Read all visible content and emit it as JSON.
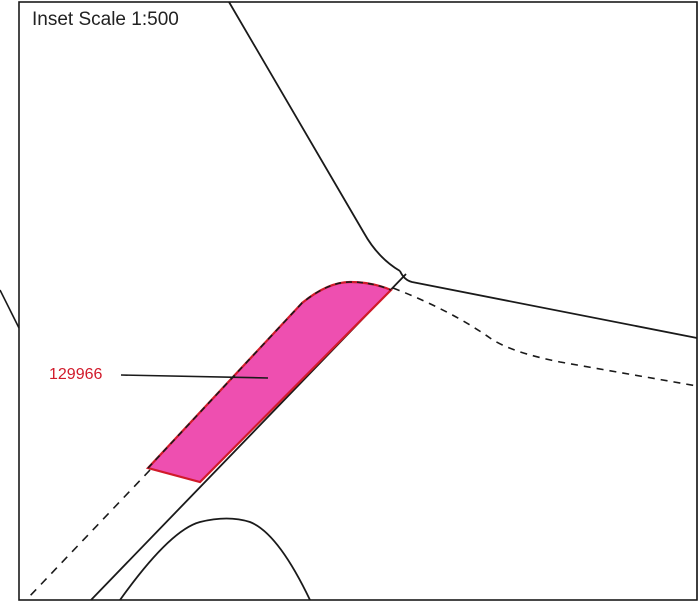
{
  "map": {
    "scale_label": "Inset Scale 1:500",
    "parcel": {
      "id_label": "129966",
      "fill_color": "#ee4fb0",
      "outline_color": "#d11a2a",
      "label_color": "#d11a2a"
    },
    "line_color": "#1a1a1a"
  }
}
